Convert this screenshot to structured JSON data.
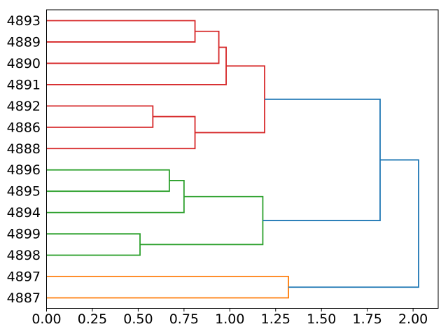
{
  "figure": {
    "background": "#ffffff"
  },
  "chart_data": {
    "type": "dendrogram",
    "title": "",
    "xlabel": "",
    "ylabel": "",
    "orientation": "root-right",
    "grid": false,
    "legend": null,
    "leaves": [
      "4893",
      "4889",
      "4890",
      "4891",
      "4892",
      "4886",
      "4888",
      "4896",
      "4895",
      "4894",
      "4899",
      "4898",
      "4897",
      "4887"
    ],
    "x_axis": {
      "tick_labels": [
        "0.00",
        "0.25",
        "0.50",
        "0.75",
        "1.00",
        "1.25",
        "1.50",
        "1.75",
        "2.00"
      ],
      "tick_values": [
        0.0,
        0.25,
        0.5,
        0.75,
        1.0,
        1.25,
        1.5,
        1.75,
        2.0
      ],
      "range": [
        0.0,
        2.137
      ]
    },
    "link_colors": {
      "blue": "#1f77b4",
      "orange": "#ff7f0e",
      "green": "#2ca02c",
      "red": "#d62728"
    },
    "merges": [
      {
        "id": "A",
        "children": [
          "4893",
          "4889"
        ],
        "height": 0.81,
        "color": "red"
      },
      {
        "id": "B",
        "children": [
          "A",
          "4890"
        ],
        "height": 0.94,
        "color": "red"
      },
      {
        "id": "C",
        "children": [
          "B",
          "4891"
        ],
        "height": 0.98,
        "color": "red"
      },
      {
        "id": "D",
        "children": [
          "4892",
          "4886"
        ],
        "height": 0.58,
        "color": "red"
      },
      {
        "id": "E",
        "children": [
          "D",
          "4888"
        ],
        "height": 0.81,
        "color": "red"
      },
      {
        "id": "F",
        "children": [
          "C",
          "E"
        ],
        "height": 1.19,
        "color": "red"
      },
      {
        "id": "G",
        "children": [
          "4896",
          "4895"
        ],
        "height": 0.67,
        "color": "green"
      },
      {
        "id": "H",
        "children": [
          "G",
          "4894"
        ],
        "height": 0.75,
        "color": "green"
      },
      {
        "id": "I",
        "children": [
          "4899",
          "4898"
        ],
        "height": 0.51,
        "color": "green"
      },
      {
        "id": "J",
        "children": [
          "H",
          "I"
        ],
        "height": 1.18,
        "color": "green"
      },
      {
        "id": "K",
        "children": [
          "F",
          "J"
        ],
        "height": 1.82,
        "color": "blue"
      },
      {
        "id": "L",
        "children": [
          "4897",
          "4887"
        ],
        "height": 1.32,
        "color": "orange"
      },
      {
        "id": "M",
        "children": [
          "K",
          "L"
        ],
        "height": 2.03,
        "color": "blue"
      }
    ]
  }
}
